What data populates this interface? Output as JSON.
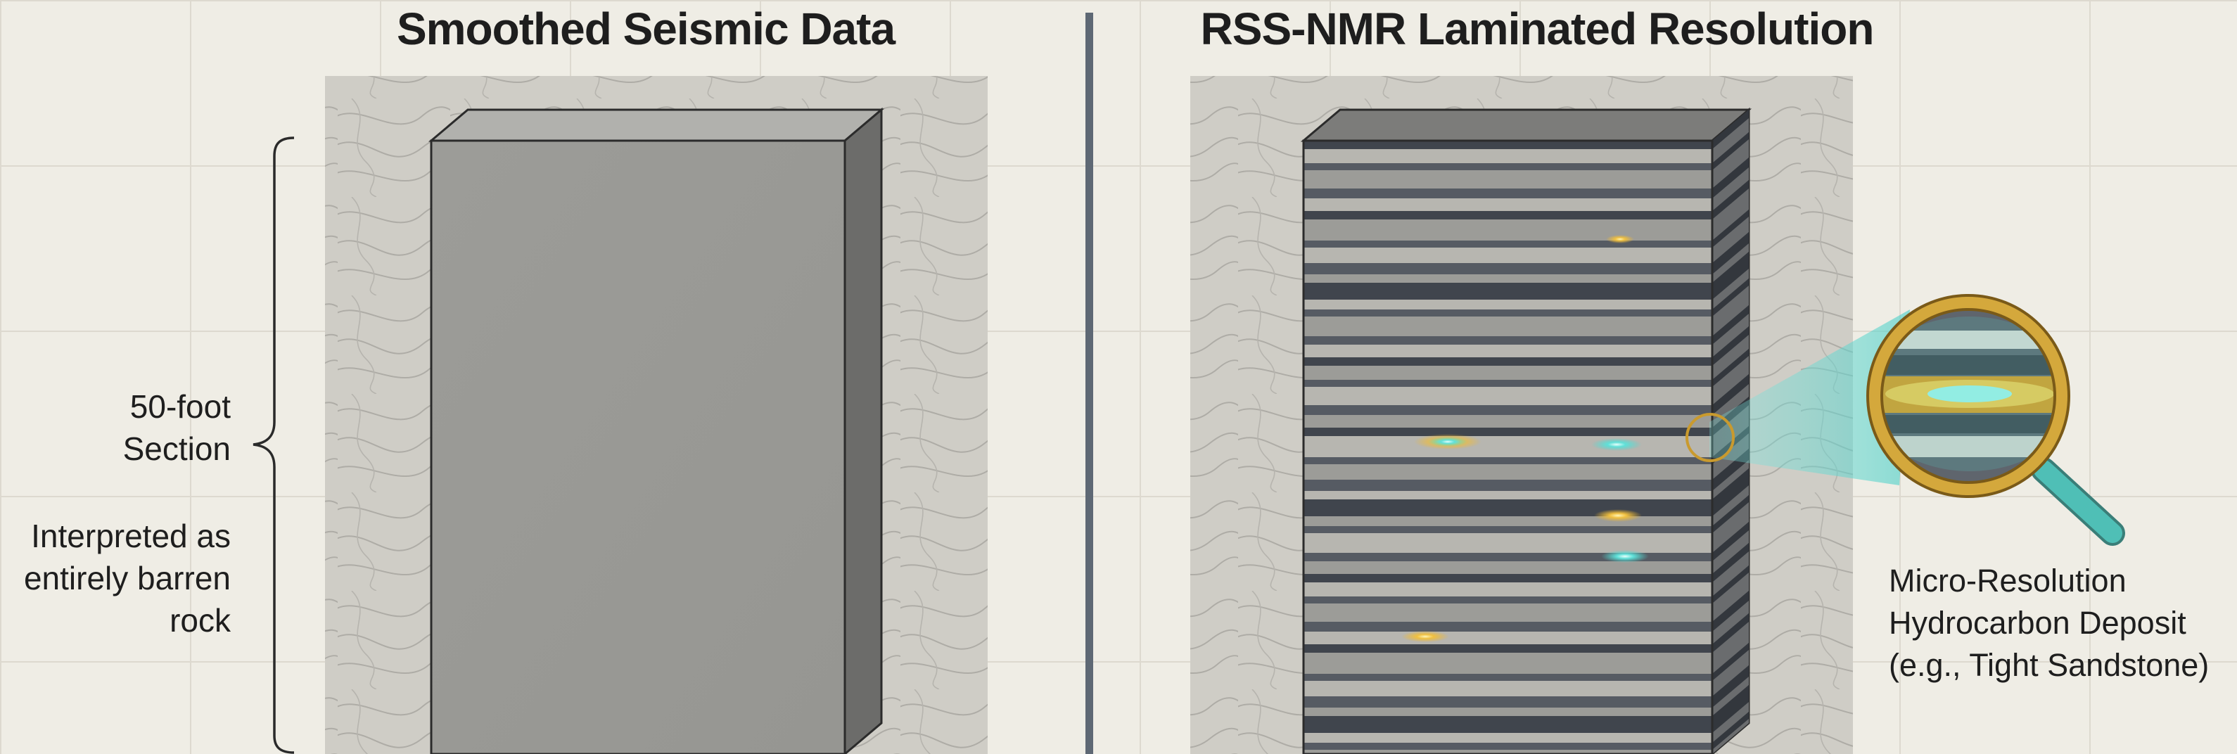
{
  "titles": {
    "left": "Smoothed Seismic Data",
    "right": "RSS-NMR Laminated Resolution"
  },
  "annotations": {
    "section_label": "50-foot\nSection",
    "interpretation_label": "Interpreted as\nentirely barren\nrock",
    "deposit_label": "Micro-Resolution\nHydrocarbon Deposit\n(e.g., Tight Sandstone)"
  },
  "colors": {
    "background": "#efede5",
    "slab": "#9a9a96",
    "divider": "#5e6874",
    "hydrocarbon_glow": "#f0b830",
    "highlight_teal": "#4fd8d0",
    "magnifier_frame": "#c99a2e"
  },
  "icons": {
    "magnifier": "magnifying-glass-icon",
    "bracket": "curly-brace"
  }
}
